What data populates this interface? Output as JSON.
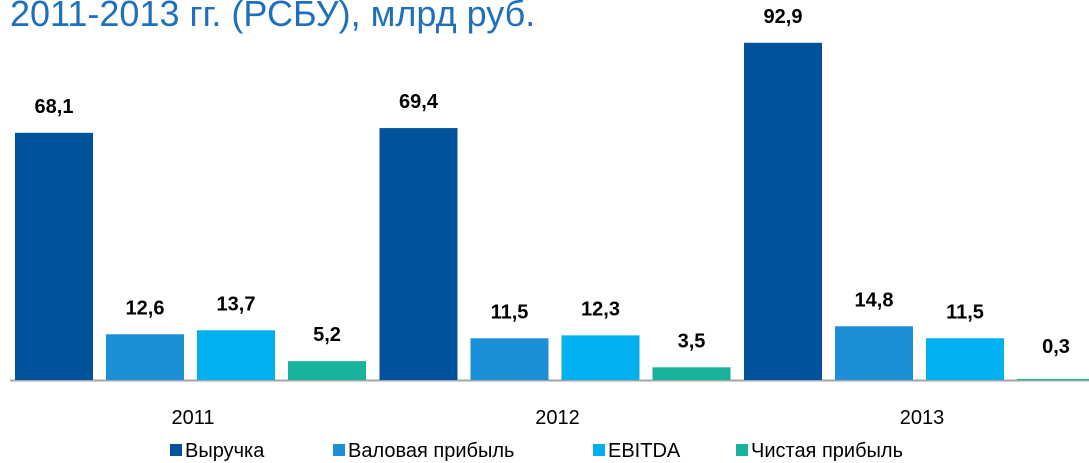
{
  "chart_data": {
    "type": "bar",
    "title": "2011-2013 гг. (РСБУ), млрд руб.",
    "categories": [
      "2011",
      "2012",
      "2013"
    ],
    "series": [
      {
        "name": "Выручка",
        "color": "#00529b",
        "values": [
          68.1,
          69.4,
          92.9
        ],
        "value_labels": [
          "68,1",
          "69,4",
          "92,9"
        ]
      },
      {
        "name": "Валовая прибыль",
        "color": "#1c8fd8",
        "values": [
          12.6,
          11.5,
          14.8
        ],
        "value_labels": [
          "12,6",
          "11,5",
          "14,8"
        ]
      },
      {
        "name": "EBITDA",
        "color": "#00b0f0",
        "values": [
          13.7,
          12.3,
          11.5
        ],
        "value_labels": [
          "13,7",
          "12,3",
          "11,5"
        ]
      },
      {
        "name": "Чистая прибыль",
        "color": "#17b39a",
        "values": [
          5.2,
          3.5,
          0.3
        ],
        "value_labels": [
          "5,2",
          "3,5",
          "0,3"
        ]
      }
    ],
    "legend": "bottom"
  }
}
